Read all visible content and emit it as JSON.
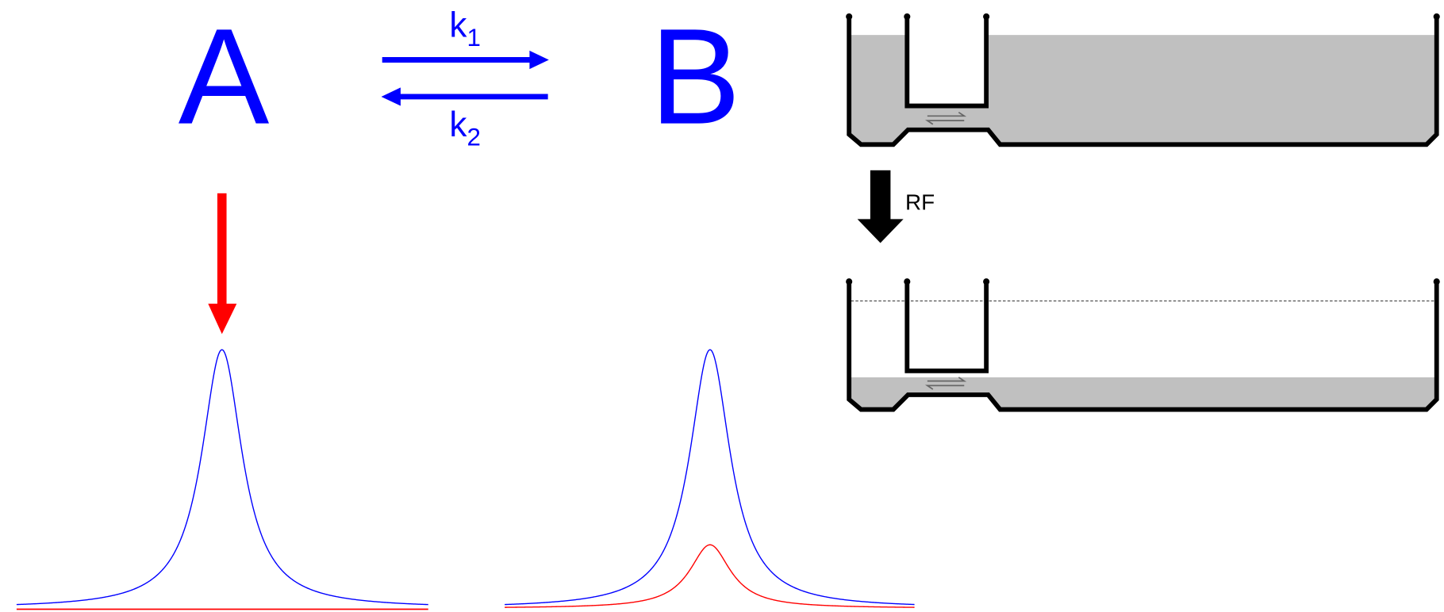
{
  "reaction": {
    "left": "A",
    "right": "B",
    "forward": {
      "symbol": "k",
      "subscript": "1"
    },
    "reverse": {
      "symbol": "k",
      "subscript": "2"
    }
  },
  "diagram": {
    "pulse": "RF"
  }
}
